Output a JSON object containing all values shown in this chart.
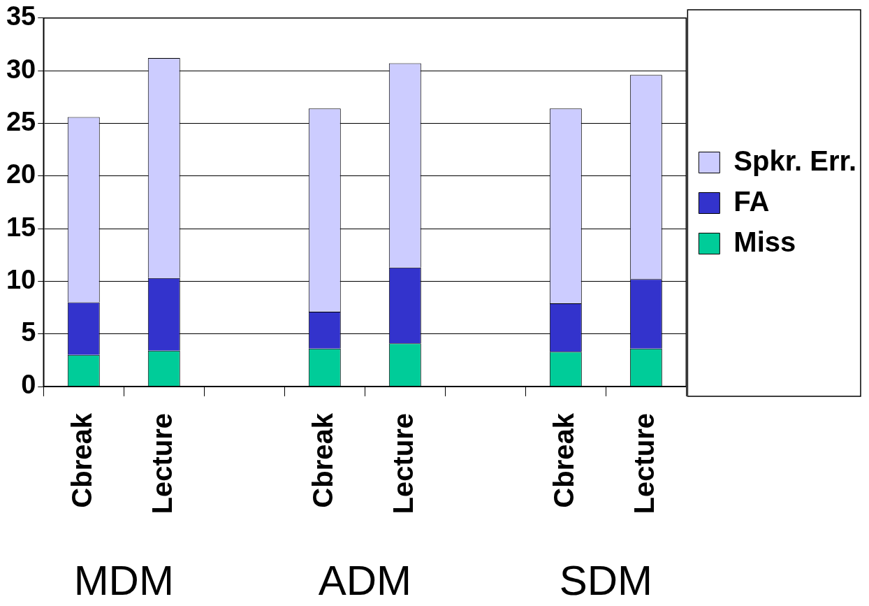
{
  "chart_data": {
    "type": "bar",
    "stacked": true,
    "categories": [
      "Cbreak",
      "Lecture",
      null,
      "Cbreak",
      "Lecture",
      null,
      "Cbreak",
      "Lecture"
    ],
    "series": [
      {
        "name": "Miss",
        "color": "#00cc99",
        "values": [
          3.0,
          3.4,
          null,
          3.6,
          4.1,
          null,
          3.3,
          3.6
        ]
      },
      {
        "name": "FA",
        "color": "#3333cc",
        "values": [
          5.0,
          6.9,
          null,
          3.5,
          7.2,
          null,
          4.6,
          6.6
        ]
      },
      {
        "name": "Spkr. Err.",
        "color": "#ccccff",
        "values": [
          17.6,
          20.9,
          null,
          19.3,
          19.4,
          null,
          18.5,
          19.4
        ]
      }
    ],
    "ylim": [
      0,
      35
    ],
    "yticks": [
      0,
      5,
      10,
      15,
      20,
      25,
      30,
      35
    ],
    "grid": "y",
    "legend": "right",
    "annotations": [
      "MDM",
      "ADM",
      "SDM"
    ]
  }
}
